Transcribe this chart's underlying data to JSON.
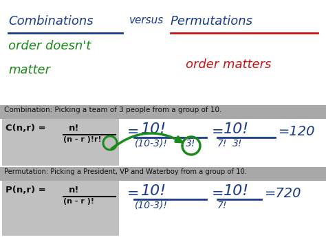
{
  "bg_color": "#ffffff",
  "gray_bg": "#a8a8a8",
  "formula_bg": "#c0c0c0",
  "blue": "#1a3a8a",
  "green": "#1a8a1a",
  "red": "#cc1111",
  "dark": "#111111",
  "title1": "Combinations",
  "versus": "versus",
  "title2": "Permutations",
  "subtitle1": "order doesn't",
  "subtitle1b": "matter",
  "subtitle2": "order matters",
  "comb_label": "Combination: Picking a team of 3 people from a group of 10.",
  "perm_label": "Permutation: Picking a President, VP and Waterboy from a group of 10."
}
